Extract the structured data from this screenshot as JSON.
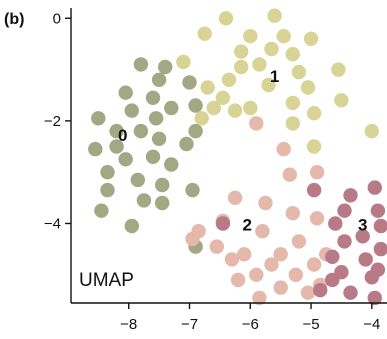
{
  "panel_label": "(b)",
  "chart_data": {
    "type": "scatter",
    "annotation": "UMAP",
    "xlim": [
      -8.95,
      -3.75
    ],
    "ylim": [
      -5.55,
      0.2
    ],
    "x_ticks": [
      -8,
      -7,
      -6,
      -5,
      -4
    ],
    "x_tick_labels": [
      "−8",
      "−7",
      "−6",
      "−5",
      "−4"
    ],
    "y_ticks": [
      0,
      -2,
      -4
    ],
    "y_tick_labels": [
      "0",
      "−2",
      "−4"
    ],
    "grid": false,
    "clusters": [
      {
        "label": "0",
        "color": "#a3a884",
        "label_pos": [
          -8.1,
          -2.3
        ],
        "points": [
          [
            -7.8,
            -0.9
          ],
          [
            -7.4,
            -0.95
          ],
          [
            -7.5,
            -1.2
          ],
          [
            -7.0,
            -1.25
          ],
          [
            -8.05,
            -1.45
          ],
          [
            -7.6,
            -1.55
          ],
          [
            -6.9,
            -1.7
          ],
          [
            -7.3,
            -1.75
          ],
          [
            -8.5,
            -1.95
          ],
          [
            -7.55,
            -1.95
          ],
          [
            -7.95,
            -1.8
          ],
          [
            -8.2,
            -2.2
          ],
          [
            -7.8,
            -2.2
          ],
          [
            -7.5,
            -2.35
          ],
          [
            -6.9,
            -2.2
          ],
          [
            -7.05,
            -2.45
          ],
          [
            -8.55,
            -2.55
          ],
          [
            -8.2,
            -2.5
          ],
          [
            -7.6,
            -2.7
          ],
          [
            -8.05,
            -2.75
          ],
          [
            -7.3,
            -2.85
          ],
          [
            -8.35,
            -3.0
          ],
          [
            -7.85,
            -3.15
          ],
          [
            -7.45,
            -3.25
          ],
          [
            -6.95,
            -3.35
          ],
          [
            -8.35,
            -3.35
          ],
          [
            -7.75,
            -3.55
          ],
          [
            -7.45,
            -3.6
          ],
          [
            -8.45,
            -3.75
          ],
          [
            -7.95,
            -4.05
          ],
          [
            -6.9,
            -4.45
          ]
        ]
      },
      {
        "label": "1",
        "color": "#d8d496",
        "label_pos": [
          -5.6,
          -1.15
        ],
        "points": [
          [
            -6.4,
            0.0
          ],
          [
            -5.6,
            0.05
          ],
          [
            -5.45,
            -0.35
          ],
          [
            -6.0,
            -0.35
          ],
          [
            -6.75,
            -0.3
          ],
          [
            -5.0,
            -0.4
          ],
          [
            -6.15,
            -0.65
          ],
          [
            -5.65,
            -0.6
          ],
          [
            -5.3,
            -0.7
          ],
          [
            -7.1,
            -0.85
          ],
          [
            -5.85,
            -0.9
          ],
          [
            -6.15,
            -0.95
          ],
          [
            -4.55,
            -1.0
          ],
          [
            -5.2,
            -1.05
          ],
          [
            -6.35,
            -1.2
          ],
          [
            -5.7,
            -1.3
          ],
          [
            -5.05,
            -1.35
          ],
          [
            -6.7,
            -1.35
          ],
          [
            -6.45,
            -1.55
          ],
          [
            -4.5,
            -1.6
          ],
          [
            -5.3,
            -1.65
          ],
          [
            -6.0,
            -1.75
          ],
          [
            -6.6,
            -1.75
          ],
          [
            -6.25,
            -1.8
          ],
          [
            -4.95,
            -1.85
          ],
          [
            -6.8,
            -1.95
          ],
          [
            -5.3,
            -2.05
          ],
          [
            -4.95,
            -2.5
          ],
          [
            -4.0,
            -2.2
          ]
        ]
      },
      {
        "label": "2",
        "color": "#e4b8aa",
        "label_pos": [
          -6.05,
          -4.05
        ],
        "points": [
          [
            -5.9,
            -2.05
          ],
          [
            -5.45,
            -2.55
          ],
          [
            -4.9,
            -3.0
          ],
          [
            -5.35,
            -3.05
          ],
          [
            -6.25,
            -3.5
          ],
          [
            -5.75,
            -3.6
          ],
          [
            -5.3,
            -3.8
          ],
          [
            -4.9,
            -3.9
          ],
          [
            -6.45,
            -3.95
          ],
          [
            -6.85,
            -4.15
          ],
          [
            -5.8,
            -4.15
          ],
          [
            -6.95,
            -4.3
          ],
          [
            -5.2,
            -4.35
          ],
          [
            -6.55,
            -4.45
          ],
          [
            -6.1,
            -4.6
          ],
          [
            -5.5,
            -4.6
          ],
          [
            -4.75,
            -4.6
          ],
          [
            -6.3,
            -4.7
          ],
          [
            -5.65,
            -4.8
          ],
          [
            -4.95,
            -4.8
          ],
          [
            -5.25,
            -5.0
          ],
          [
            -5.9,
            -5.0
          ],
          [
            -4.85,
            -5.2
          ],
          [
            -6.2,
            -5.1
          ],
          [
            -5.5,
            -5.25
          ],
          [
            -5.05,
            -5.35
          ],
          [
            -5.85,
            -5.45
          ]
        ]
      },
      {
        "label": "3",
        "color": "#b87a87",
        "label_pos": [
          -4.15,
          -4.05
        ],
        "points": [
          [
            -6.45,
            -4.0
          ],
          [
            -4.95,
            -3.35
          ],
          [
            -4.35,
            -3.45
          ],
          [
            -3.95,
            -3.3
          ],
          [
            -4.45,
            -3.75
          ],
          [
            -3.9,
            -3.75
          ],
          [
            -4.6,
            -4.0
          ],
          [
            -3.85,
            -4.05
          ],
          [
            -4.15,
            -4.25
          ],
          [
            -4.45,
            -4.35
          ],
          [
            -3.85,
            -4.5
          ],
          [
            -4.65,
            -4.65
          ],
          [
            -4.1,
            -4.7
          ],
          [
            -3.9,
            -4.9
          ],
          [
            -4.5,
            -4.95
          ],
          [
            -4.0,
            -5.05
          ],
          [
            -4.65,
            -5.1
          ],
          [
            -4.85,
            -5.3
          ],
          [
            -4.35,
            -5.35
          ],
          [
            -3.95,
            -5.45
          ]
        ]
      }
    ]
  }
}
